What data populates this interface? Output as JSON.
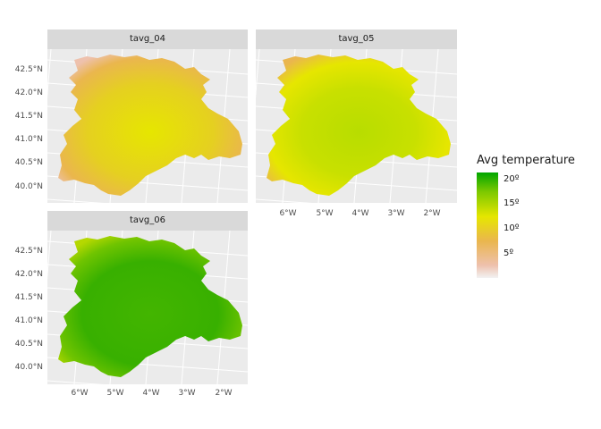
{
  "map": {
    "panels": [
      {
        "key": "p04",
        "title": "tavg_04",
        "fill_mode": "april"
      },
      {
        "key": "p05",
        "title": "tavg_05",
        "fill_mode": "may"
      },
      {
        "key": "p06",
        "title": "tavg_06",
        "fill_mode": "june"
      }
    ],
    "lat_labels": [
      "42.5°N",
      "42.0°N",
      "41.5°N",
      "41.0°N",
      "40.5°N",
      "40.0°N"
    ],
    "lon_labels": [
      "6°W",
      "5°W",
      "4°W",
      "3°W",
      "2°W"
    ],
    "legend": {
      "title": "Avg temperature",
      "labels": [
        "20º",
        "15º",
        "10º",
        "5º"
      ],
      "colors": [
        "#00a600",
        "#e6e600",
        "#eab64e",
        "#f2f2f2"
      ]
    },
    "colors": {
      "panel_bg": "#ebebeb",
      "grid": "#ffffff",
      "strip_bg": "#d9d9d9",
      "cool": "#eab64e",
      "mid": "#e6e600",
      "warm": "#00a600",
      "pale": "#eec1ad"
    }
  }
}
